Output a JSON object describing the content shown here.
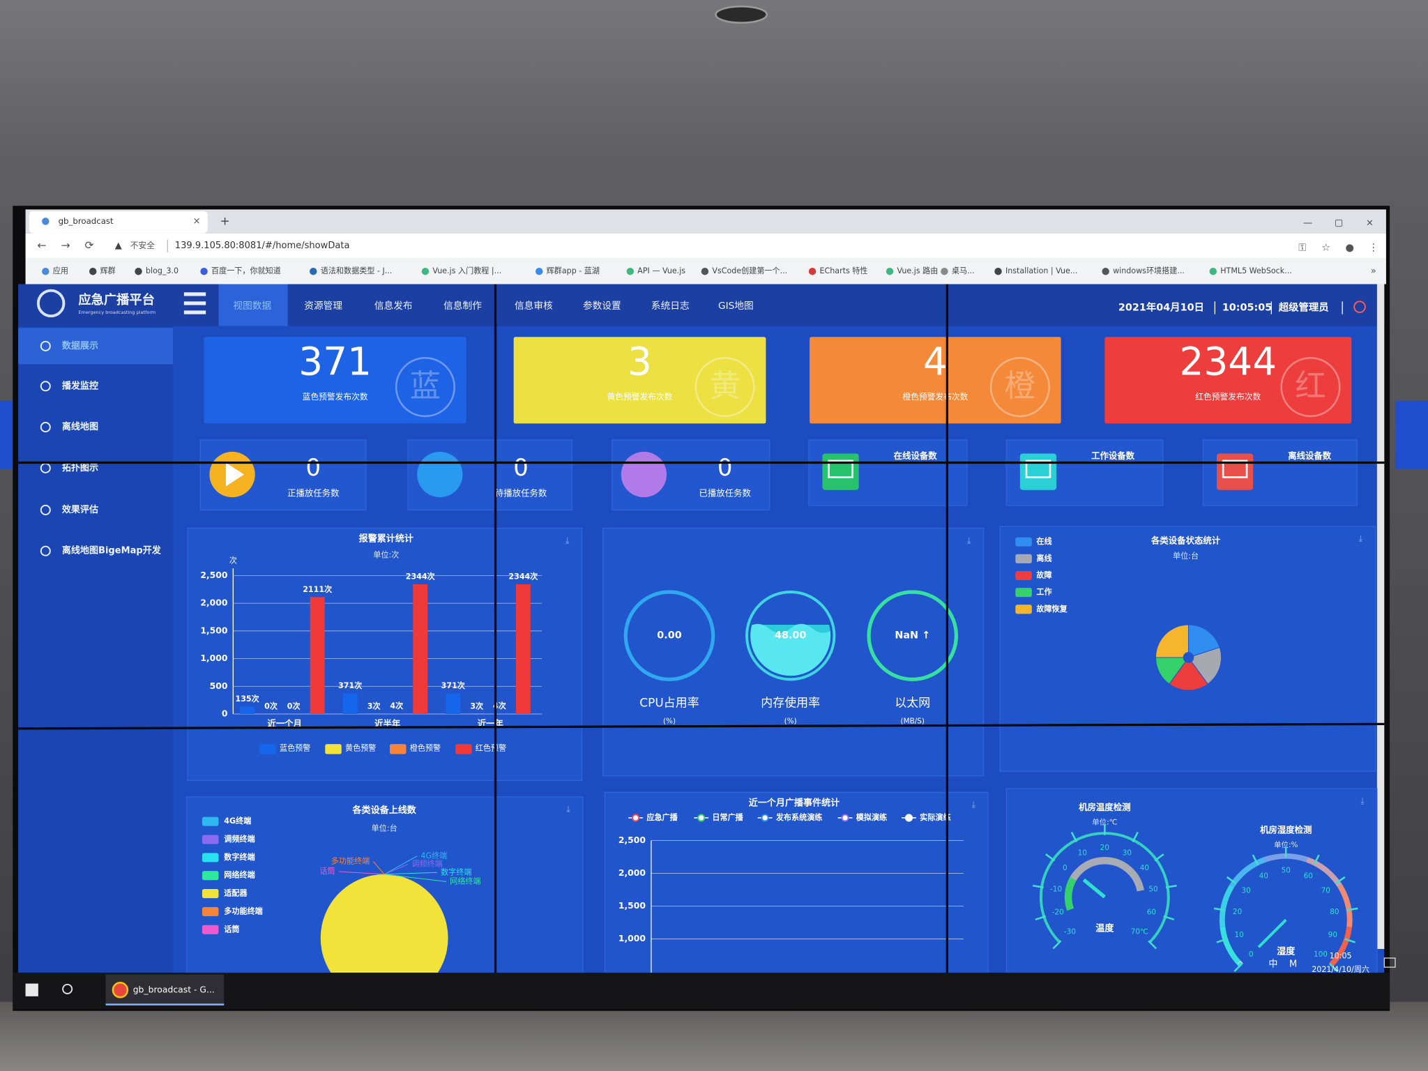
{
  "browser": {
    "tab": "gb_broadcast",
    "insecure": "不安全",
    "url": "139.9.105.80:8081/#/home/showData",
    "bookmarks": [
      "应用",
      "辉群",
      "blog_3.0",
      "百度一下，你就知道",
      "语法和数据类型 - J...",
      "Vue.js 入门教程 |...",
      "辉群app - 蓝湖",
      "API — Vue.js",
      "VsCode创建第一个...",
      "ECharts 特性",
      "Vue.js 路由",
      "桌马...",
      "Installation | Vue...",
      "windows环境搭建...",
      "HTML5 WebSock..."
    ]
  },
  "header": {
    "logo_title": "应急广播平台",
    "logo_subtitle": "Emergency broadcasting platform",
    "nav": [
      "视图数据",
      "资源管理",
      "信息发布",
      "信息制作",
      "信息审核",
      "参数设置",
      "系统日志",
      "GIS地图"
    ],
    "date": "2021年04月10日",
    "time": "10:05:05",
    "user": "超级管理员"
  },
  "sidebar": [
    "数据展示",
    "播发监控",
    "离线地图",
    "拓扑图示",
    "效果评估",
    "离线地图BigeMap开发"
  ],
  "alert_cards": [
    {
      "value": 371,
      "label": "蓝色预警发布次数",
      "badge": "蓝"
    },
    {
      "value": 3,
      "label": "黄色预警发布次数",
      "badge": "黄"
    },
    {
      "value": 4,
      "label": "橙色预警发布次数",
      "badge": "橙"
    },
    {
      "value": 2344,
      "label": "红色预警发布次数",
      "badge": "红"
    }
  ],
  "task_cards": [
    {
      "value": 0,
      "label": "正播放任务数"
    },
    {
      "value": 0,
      "label": "待播放任务数"
    },
    {
      "value": 0,
      "label": "已播放任务数"
    }
  ],
  "device_cards": [
    "在线设备数",
    "工作设备数",
    "离线设备数"
  ],
  "alarm_chart": {
    "type": "bar",
    "title": "报警累计统计",
    "unit": "单位:次",
    "y_label": "次",
    "categories": [
      "近一个月",
      "近半年",
      "近一年"
    ],
    "series": [
      {
        "name": "蓝色预警",
        "color": "#1566ea",
        "values": [
          135,
          371,
          371
        ],
        "value_labels": [
          "135次",
          "371次",
          "371次"
        ]
      },
      {
        "name": "黄色预警",
        "color": "#f2e33a",
        "values": [
          0,
          3,
          3
        ],
        "value_labels": [
          "0次",
          "3次",
          "3次"
        ]
      },
      {
        "name": "橙色预警",
        "color": "#f5843a",
        "values": [
          0,
          4,
          4
        ],
        "value_labels": [
          "0次",
          "4次",
          "4次"
        ]
      },
      {
        "name": "红色预警",
        "color": "#f03a3a",
        "values": [
          2111,
          2344,
          2344
        ],
        "value_labels": [
          "2111次",
          "2344次",
          "2344次"
        ]
      }
    ],
    "ylim": [
      0,
      2500
    ],
    "yticks": [
      0,
      500,
      {
        "value": 1000,
        "label": "1,000"
      },
      {
        "value": 1500,
        "label": "1,500"
      },
      {
        "value": 2000,
        "label": "2,000"
      },
      {
        "value": 2500,
        "label": "2,500"
      }
    ]
  },
  "gauges": [
    {
      "value": 0,
      "value_label": "0.00",
      "label": "CPU占用率",
      "unit": "(%)"
    },
    {
      "value": 48,
      "value_label": "48.00",
      "label": "内存使用率",
      "unit": "(%)"
    },
    {
      "value_label": "NaN ↑",
      "label": "以太网",
      "unit": "(MB/S)"
    }
  ],
  "status_chart": {
    "type": "pie",
    "title": "各类设备状态统计",
    "unit": "单位:台",
    "categories": [
      "在线",
      "离线",
      "故障",
      "工作",
      "故障恢复"
    ],
    "colors": [
      "#2f8ef0",
      "#a7a9b0",
      "#ee3d3d",
      "#35d16a",
      "#f5b62e"
    ],
    "values": [
      20,
      20,
      20,
      15,
      25
    ]
  },
  "online_chart": {
    "type": "pie",
    "title": "各类设备上线数",
    "unit": "单位:台",
    "categories": [
      "4G终端",
      "调频终端",
      "数字终端",
      "网络终端",
      "适配器",
      "多功能终端",
      "话筒"
    ],
    "colors": [
      "#2fb7f0",
      "#8b6cf0",
      "#29e0f0",
      "#2ee8a0",
      "#f2e33a",
      "#f5843a",
      "#f05ad0"
    ],
    "values": [
      0,
      0,
      0,
      0,
      1,
      0,
      0
    ]
  },
  "event_chart": {
    "type": "line",
    "title": "近一个月广播事件统计",
    "series": [
      {
        "name": "应急广播",
        "color": "#f04a5a"
      },
      {
        "name": "日常广播",
        "color": "#35d16a"
      },
      {
        "name": "发布系统演练",
        "color": "#2f8ef0"
      },
      {
        "name": "模拟演练",
        "color": "#8b6cf0"
      },
      {
        "name": "实际演练",
        "color": "#ffffff"
      }
    ],
    "ylim": [
      0,
      2500
    ],
    "yticks": [
      {
        "value": 1000,
        "label": "1,000"
      },
      {
        "value": 1500,
        "label": "1,500"
      },
      {
        "value": 2000,
        "label": "2,000"
      },
      {
        "value": 2500,
        "label": "2,500"
      }
    ]
  },
  "temp_gauge": {
    "title": "机房温度检测",
    "unit": "单位:℃",
    "label": "温度",
    "lim": [
      -30,
      70
    ],
    "ticks": [
      -30,
      -20,
      -10,
      0,
      10,
      20,
      30,
      40,
      50,
      60,
      {
        "value": 70,
        "label": "70℃"
      }
    ]
  },
  "humidity_gauge": {
    "title": "机房湿度检测",
    "unit": "单位:%",
    "label": "湿度",
    "lim": [
      0,
      100
    ],
    "ticks": [
      0,
      10,
      20,
      30,
      40,
      50,
      60,
      70,
      80,
      90,
      100
    ]
  },
  "taskbar": {
    "app": "gb_broadcast - G...",
    "ime": "中",
    "m": "M",
    "time": "10:05",
    "date": "2021/4/10/周六"
  }
}
